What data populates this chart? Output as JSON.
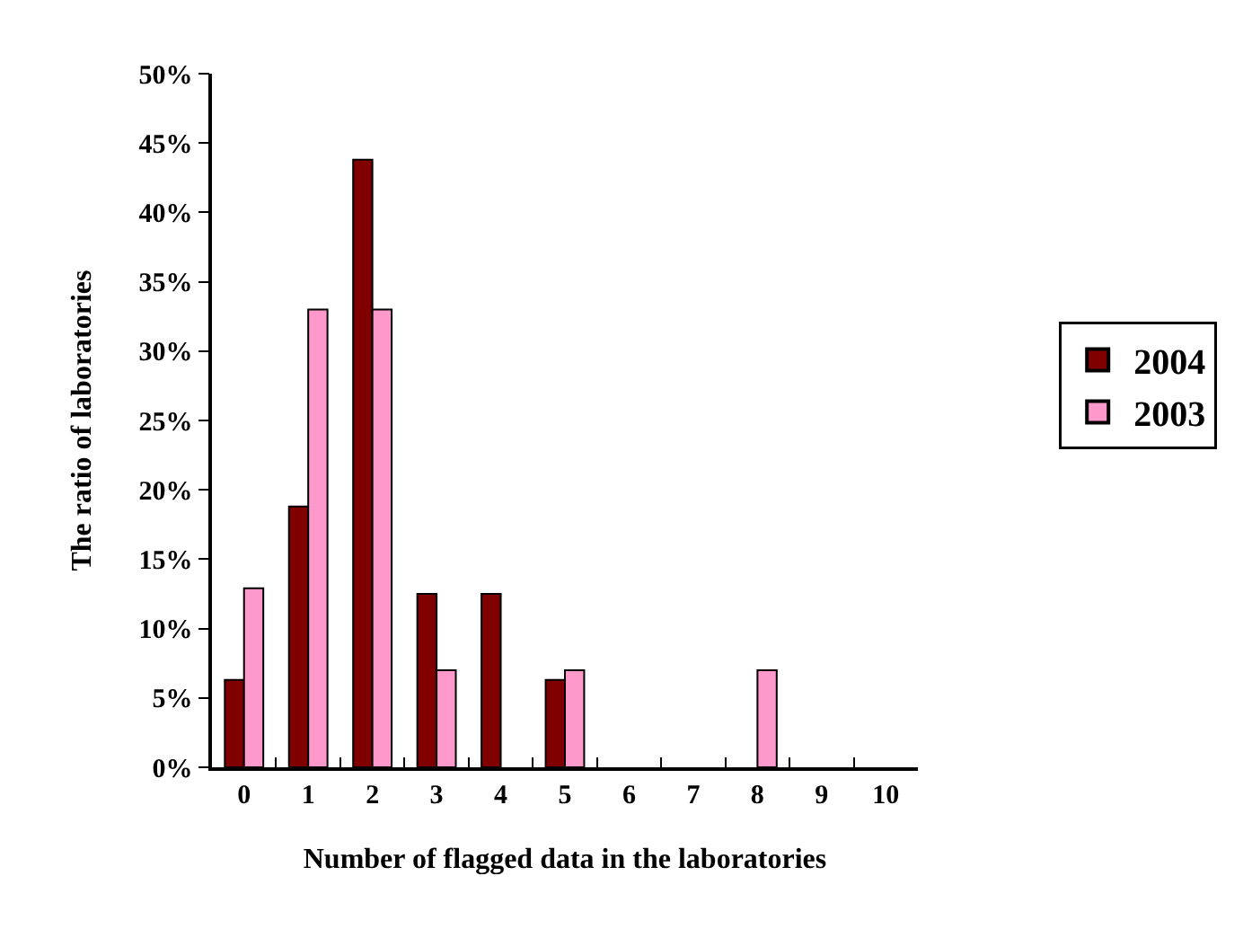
{
  "chart_data": {
    "type": "bar",
    "xlabel": "Number of flagged data in the laboratories",
    "ylabel": "The ratio of laboratories",
    "categories": [
      "0",
      "1",
      "2",
      "3",
      "4",
      "5",
      "6",
      "7",
      "8",
      "9",
      "10"
    ],
    "series": [
      {
        "name": "2004",
        "color": "#800000",
        "values": [
          6.3,
          18.8,
          43.8,
          12.5,
          12.5,
          6.3,
          null,
          null,
          null,
          null,
          null
        ]
      },
      {
        "name": "2003",
        "color": "#ff99cc",
        "values": [
          12.9,
          33,
          33,
          7,
          null,
          7,
          null,
          null,
          7,
          null,
          null
        ]
      }
    ],
    "ylim": [
      0,
      50
    ],
    "yticks": [
      {
        "value": 0,
        "label": "0%"
      },
      {
        "value": 5,
        "label": "5%"
      },
      {
        "value": 10,
        "label": "10%"
      },
      {
        "value": 15,
        "label": "15%"
      },
      {
        "value": 20,
        "label": "20%"
      },
      {
        "value": 25,
        "label": "25%"
      },
      {
        "value": 30,
        "label": "30%"
      },
      {
        "value": 35,
        "label": "35%"
      },
      {
        "value": 40,
        "label": "40%"
      },
      {
        "value": 45,
        "label": "45%"
      },
      {
        "value": 50,
        "label": "50%"
      }
    ],
    "legend": "right"
  }
}
